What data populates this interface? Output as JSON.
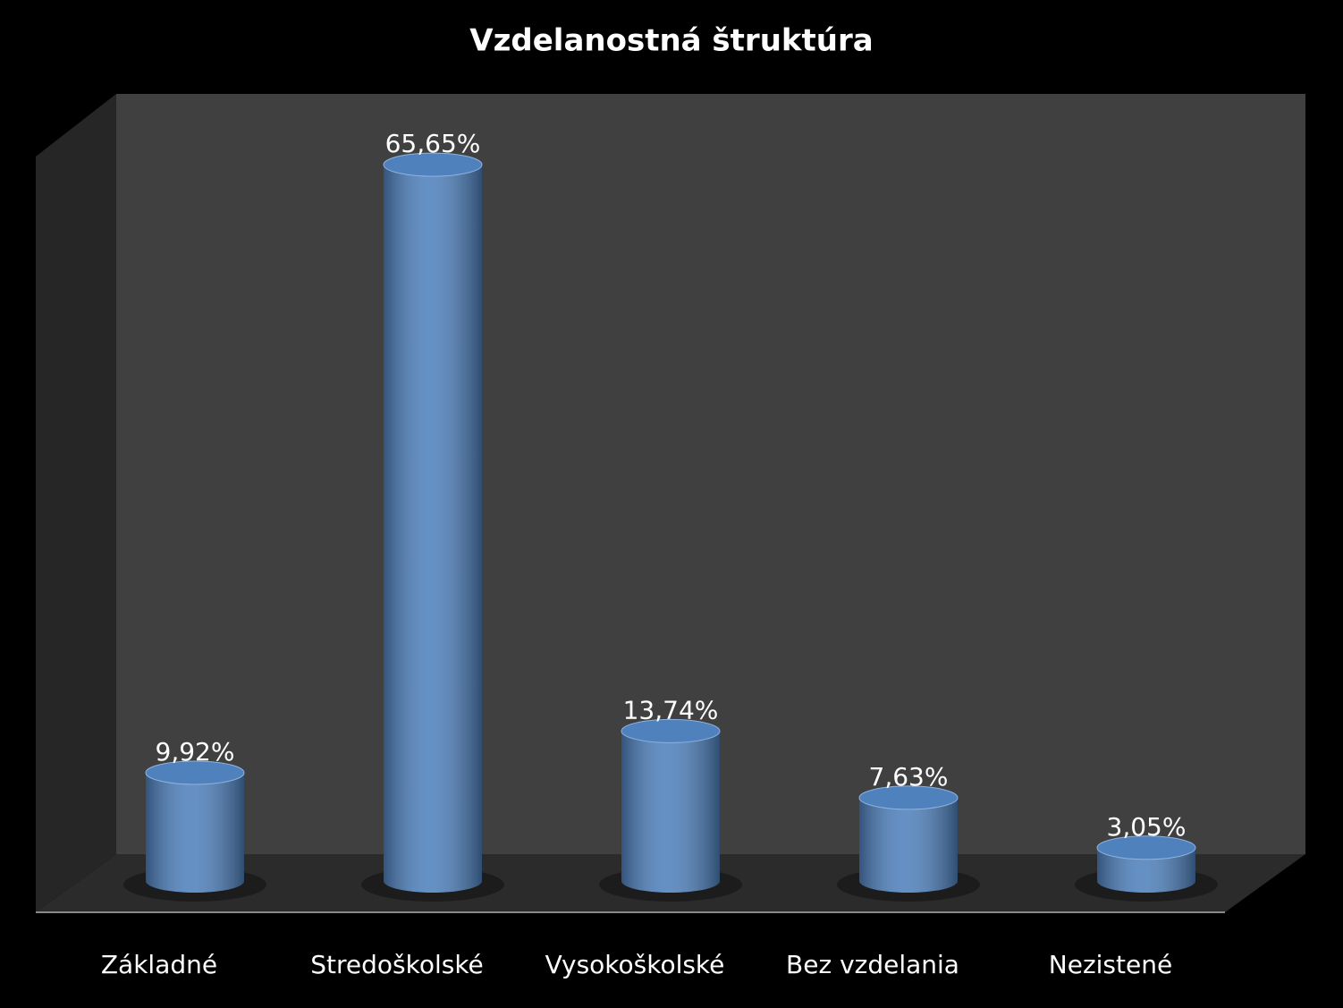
{
  "chart_data": {
    "type": "bar",
    "title": "Vzdelanostná štruktúra",
    "categories": [
      "Základné",
      "Stredoškolské",
      "Vysokoškolské",
      "Bez vzdelania",
      "Nezistené"
    ],
    "values": [
      9.92,
      65.65,
      13.74,
      7.63,
      3.05
    ],
    "value_labels": [
      "9,92%",
      "65,65%",
      "13,74%",
      "7,63%",
      "3,05%"
    ],
    "color": "#4f81bd"
  }
}
